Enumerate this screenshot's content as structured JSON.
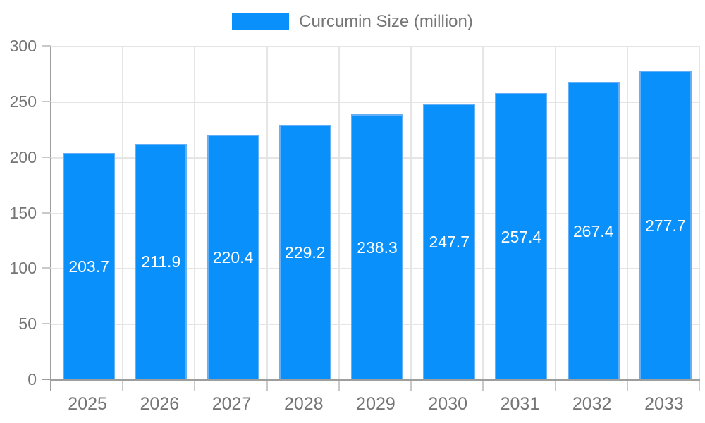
{
  "legend": {
    "label": "Curcumin Size (million)"
  },
  "chart_data": {
    "type": "bar",
    "title": "",
    "series_name": "Curcumin Size (million)",
    "categories": [
      "2025",
      "2026",
      "2027",
      "2028",
      "2029",
      "2030",
      "2031",
      "2032",
      "2033"
    ],
    "values": [
      203.7,
      211.9,
      220.4,
      229.2,
      238.3,
      247.7,
      257.4,
      267.4,
      277.7
    ],
    "value_labels": [
      "203.7",
      "211.9",
      "220.4",
      "229.2",
      "238.3",
      "247.7",
      "257.4",
      "267.4",
      "277.7"
    ],
    "xlabel": "",
    "ylabel": "",
    "ylim": [
      0,
      300
    ],
    "yticks": [
      0,
      50,
      100,
      150,
      200,
      250,
      300
    ],
    "grid": true,
    "legend_position": "top-center",
    "colors": {
      "bar_fill": "#0990fa",
      "bar_border": "#64aff5",
      "value_label": "#ffffff",
      "axis_text": "#757575",
      "axis_line": "#9e9e9e",
      "gridline": "#e5e5e5",
      "tick": "#c9c9c9"
    }
  }
}
